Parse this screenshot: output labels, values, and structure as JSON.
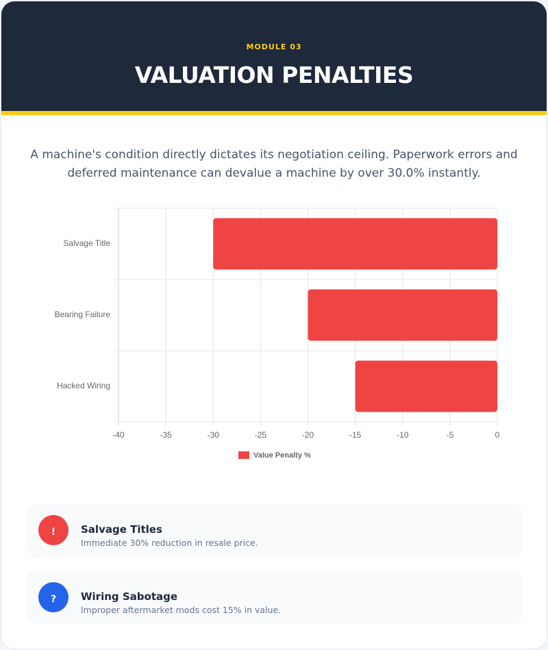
{
  "header": {
    "module": "MODULE 03",
    "title": "VALUATION PENALTIES"
  },
  "intro": "A machine's condition directly dictates its negotiation ceiling. Paperwork errors and deferred maintenance can devalue a machine by over 30.0% instantly.",
  "chart_data": {
    "type": "bar",
    "orientation": "horizontal",
    "categories": [
      "Salvage Title",
      "Bearing Failure",
      "Hacked Wiring"
    ],
    "series": [
      {
        "name": "Value Penalty %",
        "color": "#ef4444",
        "values": [
          -30,
          -20,
          -15
        ]
      }
    ],
    "xlim": [
      -40,
      0
    ],
    "xticks": [
      -40,
      -35,
      -30,
      -25,
      -20,
      -15,
      -10,
      -5,
      0
    ],
    "grid": true,
    "legend": "bottom"
  },
  "cards": [
    {
      "icon": "!",
      "title": "Salvage Titles",
      "text": "Immediate 30% reduction in resale price."
    },
    {
      "icon": "?",
      "title": "Wiring Sabotage",
      "text": "Improper aftermarket mods cost 15% in value."
    }
  ]
}
